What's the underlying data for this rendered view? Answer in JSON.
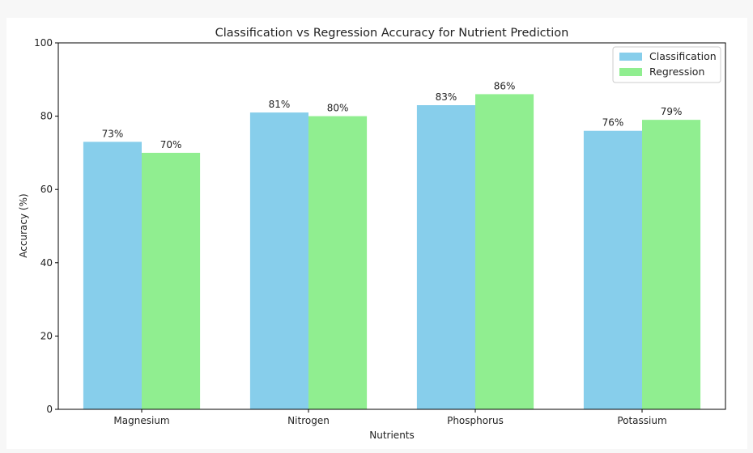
{
  "chart_data": {
    "type": "bar",
    "title": "Classification vs Regression Accuracy for Nutrient Prediction",
    "xlabel": "Nutrients",
    "ylabel": "Accuracy (%)",
    "categories": [
      "Magnesium",
      "Nitrogen",
      "Phosphorus",
      "Potassium"
    ],
    "series": [
      {
        "name": "Classification",
        "values": [
          73,
          81,
          83,
          76
        ],
        "labels": [
          "73%",
          "81%",
          "83%",
          "76%"
        ],
        "color": "#87ceeb"
      },
      {
        "name": "Regression",
        "values": [
          70,
          80,
          86,
          79
        ],
        "labels": [
          "70%",
          "80%",
          "86%",
          "79%"
        ],
        "color": "#90ee90"
      }
    ],
    "ylim": [
      0,
      100
    ],
    "yticks": [
      0,
      20,
      40,
      60,
      80,
      100
    ],
    "ytick_labels": [
      "0",
      "20",
      "40",
      "60",
      "80",
      "100"
    ],
    "grid": false,
    "legend_position": "top-right"
  }
}
